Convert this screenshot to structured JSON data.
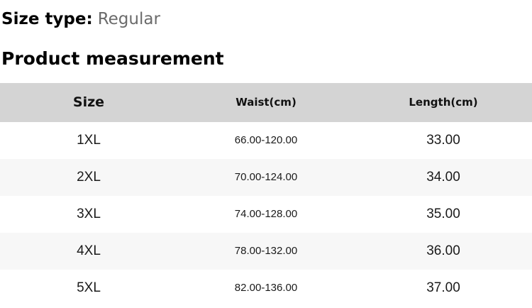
{
  "page": {
    "size_type_label": "Size type:",
    "size_type_value": "Regular",
    "section_title": "Product measurement"
  },
  "table": {
    "columns": [
      {
        "label": "Size"
      },
      {
        "label": "Waist(cm)"
      },
      {
        "label": "Length(cm)"
      }
    ],
    "row_keys": [
      "size",
      "waist",
      "length"
    ],
    "rows": [
      {
        "size": "1XL",
        "waist": "66.00-120.00",
        "length": "33.00"
      },
      {
        "size": "2XL",
        "waist": "70.00-124.00",
        "length": "34.00"
      },
      {
        "size": "3XL",
        "waist": "74.00-128.00",
        "length": "35.00"
      },
      {
        "size": "4XL",
        "waist": "78.00-132.00",
        "length": "36.00"
      },
      {
        "size": "5XL",
        "waist": "82.00-136.00",
        "length": "37.00"
      }
    ]
  },
  "colors": {
    "header_bg": "#d4d4d4",
    "row_alt_bg": "#f7f7f7",
    "heading_text": "#000000",
    "muted_text": "#6b6b6b",
    "cell_text": "#1a1a1a"
  }
}
